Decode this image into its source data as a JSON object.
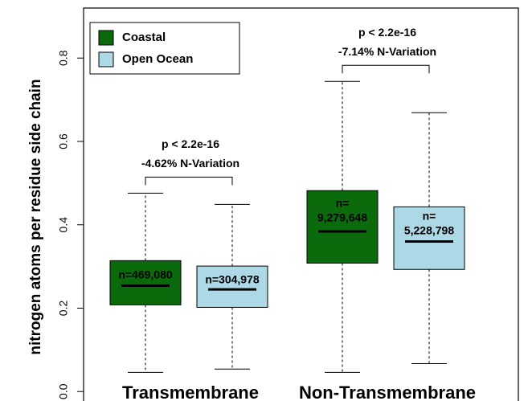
{
  "chart_data": {
    "type": "box",
    "y_label": "nitrogen atoms per residue side chain",
    "categories": [
      "Transmembrane",
      "Non-Transmembrane"
    ],
    "series": [
      {
        "name": "Coastal",
        "color": "#0b6a0b",
        "label_color": "#ffffff",
        "whisker_low": [
          0.046,
          0.046
        ],
        "q1": [
          0.208,
          0.308
        ],
        "median": [
          0.254,
          0.384
        ],
        "q3": [
          0.314,
          0.482
        ],
        "whisker_high": [
          0.476,
          0.744
        ],
        "box_labels": [
          [
            "n=469,080"
          ],
          [
            "n=",
            "9,279,648"
          ]
        ]
      },
      {
        "name": "Open Ocean",
        "color": "#add8e6",
        "label_color": "#000000",
        "whisker_low": [
          0.054,
          0.067
        ],
        "q1": [
          0.202,
          0.293
        ],
        "median": [
          0.245,
          0.36
        ],
        "q3": [
          0.301,
          0.443
        ],
        "whisker_high": [
          0.449,
          0.669
        ],
        "box_labels": [
          [
            "n=304,978"
          ],
          [
            "n=",
            "5,228,798"
          ]
        ]
      }
    ],
    "annotations": [
      [
        "p < 2.2e-16",
        "-4.62% N-Variation"
      ],
      [
        "p < 2.2e-16",
        "-7.14% N-Variation"
      ]
    ],
    "ylim": [
      -0.02,
      0.92
    ],
    "yticks": [
      {
        "value": 0,
        "label": "0.0"
      },
      0.2,
      0.4,
      0.6,
      0.8
    ],
    "legend": "top-left"
  }
}
